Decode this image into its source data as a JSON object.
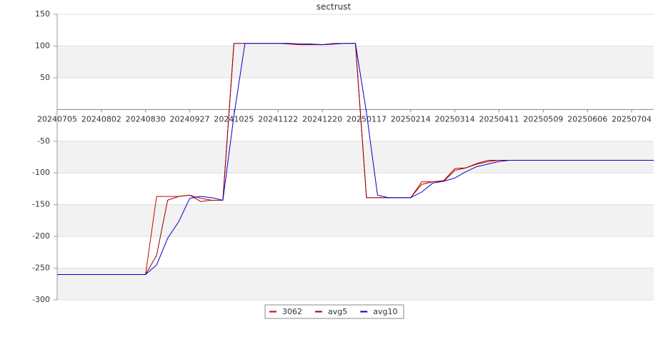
{
  "chart_data": {
    "type": "line",
    "title": "sectrust",
    "categories": [
      "20240705",
      null,
      null,
      null,
      "20240802",
      null,
      null,
      null,
      "20240830",
      null,
      null,
      null,
      "20240927",
      null,
      null,
      null,
      "20241025",
      null,
      null,
      null,
      "20241122",
      null,
      null,
      null,
      "20241220",
      null,
      null,
      null,
      "20250117",
      null,
      null,
      null,
      "20250214",
      null,
      null,
      null,
      "20250314",
      null,
      null,
      null,
      "20250411",
      null,
      null,
      null,
      "20250509",
      null,
      null,
      null,
      "20250606",
      null,
      null,
      null,
      "20250704",
      null,
      null
    ],
    "series": [
      {
        "name": "3062",
        "color": "#cc0000",
        "values": [
          -260,
          -260,
          -260,
          -260,
          -260,
          -260,
          -260,
          -260,
          -260,
          -137,
          -137,
          -137,
          -135,
          -140,
          -143,
          -143,
          104,
          104,
          104,
          104,
          104,
          103,
          102,
          102,
          102,
          104,
          104,
          104,
          -139,
          -139,
          -139,
          -139,
          -139,
          -114,
          -114,
          -112,
          -93,
          -92,
          -85,
          -80,
          -80,
          -80,
          -80,
          -80,
          -80,
          -80,
          -80,
          -80,
          -80,
          -80,
          -80,
          -80,
          -80,
          -80,
          -80
        ]
      },
      {
        "name": "avg5",
        "color": "#990000",
        "values": [
          -260,
          -260,
          -260,
          -260,
          -260,
          -260,
          -260,
          -260,
          -260,
          -230,
          -143,
          -137,
          -135,
          -145,
          -143,
          -143,
          104,
          104,
          104,
          104,
          104,
          104,
          103,
          103,
          102,
          103,
          104,
          104,
          -139,
          -139,
          -139,
          -139,
          -139,
          -118,
          -114,
          -113,
          -96,
          -92,
          -86,
          -82,
          -80,
          -80,
          -80,
          -80,
          -80,
          -80,
          -80,
          -80,
          -80,
          -80,
          -80,
          -80,
          -80,
          -80,
          -80
        ]
      },
      {
        "name": "avg10",
        "color": "#0000cc",
        "values": [
          -260,
          -260,
          -260,
          -260,
          -260,
          -260,
          -260,
          -260,
          -260,
          -245,
          -203,
          -177,
          -140,
          -137,
          -139,
          -143,
          -10,
          104,
          104,
          104,
          104,
          104,
          103,
          103,
          102,
          103,
          104,
          104,
          -5,
          -135,
          -139,
          -139,
          -139,
          -130,
          -116,
          -113,
          -108,
          -98,
          -90,
          -86,
          -82,
          -80,
          -80,
          -80,
          -80,
          -80,
          -80,
          -80,
          -80,
          -80,
          -80,
          -80,
          -80,
          -80,
          -80
        ]
      }
    ],
    "ylim": [
      -300,
      150
    ],
    "yticks": [
      -300,
      -250,
      -200,
      -150,
      -100,
      -50,
      50,
      100,
      150
    ],
    "grid": true
  }
}
